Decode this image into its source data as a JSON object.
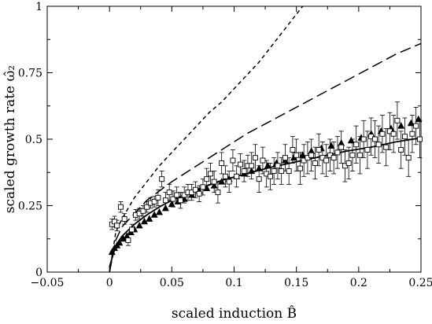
{
  "chart_data": {
    "type": "scatter",
    "title": "",
    "xlabel": "scaled induction B̂",
    "ylabel": "scaled growth rate ω̂₂",
    "xlim": [
      -0.05,
      0.25
    ],
    "ylim": [
      0,
      1
    ],
    "grid": false,
    "legend": "none",
    "x_ticks": [
      "−0.05",
      "0",
      "0.05",
      "0.1",
      "0.15",
      "0.2",
      "0.25"
    ],
    "y_ticks": [
      "0",
      "0.25",
      "0.5",
      "0.75",
      "1"
    ],
    "series": [
      {
        "style": "short-dash",
        "color": "#000000",
        "x": [
          0,
          0.005,
          0.01,
          0.02,
          0.03,
          0.04,
          0.05,
          0.06,
          0.07,
          0.08,
          0.09,
          0.1,
          0.11,
          0.12,
          0.13,
          0.14,
          0.15,
          0.155
        ],
        "y": [
          0,
          0.15,
          0.2,
          0.28,
          0.34,
          0.4,
          0.45,
          0.5,
          0.55,
          0.6,
          0.64,
          0.69,
          0.74,
          0.79,
          0.85,
          0.91,
          0.97,
          1.0
        ]
      },
      {
        "style": "long-dash",
        "color": "#000000",
        "x": [
          0,
          0.005,
          0.01,
          0.02,
          0.03,
          0.05,
          0.07,
          0.09,
          0.11,
          0.13,
          0.15,
          0.17,
          0.19,
          0.21,
          0.23,
          0.25
        ],
        "y": [
          0,
          0.12,
          0.17,
          0.22,
          0.27,
          0.34,
          0.4,
          0.46,
          0.52,
          0.57,
          0.62,
          0.67,
          0.72,
          0.77,
          0.82,
          0.86
        ]
      },
      {
        "style": "solid",
        "color": "#000000",
        "x": [
          0,
          0.005,
          0.01,
          0.02,
          0.03,
          0.04,
          0.05,
          0.07,
          0.09,
          0.11,
          0.13,
          0.15,
          0.17,
          0.19,
          0.21,
          0.23,
          0.25
        ],
        "y": [
          0.02,
          0.1,
          0.135,
          0.18,
          0.215,
          0.245,
          0.27,
          0.31,
          0.345,
          0.37,
          0.395,
          0.415,
          0.435,
          0.455,
          0.47,
          0.49,
          0.505
        ]
      },
      {
        "style": "filled-triangle",
        "color": "#000000",
        "x": [
          0.002,
          0.004,
          0.006,
          0.008,
          0.011,
          0.014,
          0.017,
          0.02,
          0.024,
          0.028,
          0.032,
          0.036,
          0.04,
          0.045,
          0.05,
          0.055,
          0.06,
          0.066,
          0.072,
          0.078,
          0.084,
          0.09,
          0.096,
          0.102,
          0.108,
          0.114,
          0.12,
          0.127,
          0.134,
          0.141,
          0.148,
          0.155,
          0.162,
          0.17,
          0.178,
          0.186,
          0.194,
          0.202,
          0.21,
          0.218,
          0.226,
          0.234,
          0.242,
          0.248
        ],
        "y": [
          0.075,
          0.09,
          0.1,
          0.11,
          0.125,
          0.135,
          0.15,
          0.16,
          0.175,
          0.19,
          0.2,
          0.215,
          0.225,
          0.24,
          0.255,
          0.265,
          0.275,
          0.29,
          0.305,
          0.315,
          0.325,
          0.34,
          0.35,
          0.36,
          0.37,
          0.38,
          0.39,
          0.4,
          0.41,
          0.42,
          0.43,
          0.44,
          0.455,
          0.465,
          0.475,
          0.485,
          0.495,
          0.505,
          0.52,
          0.53,
          0.54,
          0.55,
          0.56,
          0.575
        ]
      },
      {
        "style": "open-square-errorbar",
        "color": "#000000",
        "x": [
          0.002,
          0.004,
          0.006,
          0.009,
          0.012,
          0.015,
          0.018,
          0.021,
          0.024,
          0.027,
          0.03,
          0.033,
          0.036,
          0.039,
          0.042,
          0.045,
          0.048,
          0.051,
          0.054,
          0.057,
          0.06,
          0.063,
          0.066,
          0.069,
          0.072,
          0.075,
          0.078,
          0.081,
          0.084,
          0.087,
          0.09,
          0.093,
          0.096,
          0.099,
          0.102,
          0.105,
          0.108,
          0.111,
          0.114,
          0.117,
          0.12,
          0.123,
          0.126,
          0.129,
          0.132,
          0.135,
          0.138,
          0.141,
          0.144,
          0.147,
          0.15,
          0.153,
          0.156,
          0.159,
          0.162,
          0.165,
          0.168,
          0.171,
          0.174,
          0.177,
          0.18,
          0.183,
          0.186,
          0.189,
          0.192,
          0.195,
          0.198,
          0.201,
          0.204,
          0.207,
          0.21,
          0.213,
          0.216,
          0.219,
          0.222,
          0.225,
          0.228,
          0.231,
          0.234,
          0.237,
          0.24,
          0.243,
          0.246,
          0.249
        ],
        "y": [
          0.18,
          0.19,
          0.175,
          0.245,
          0.2,
          0.12,
          0.16,
          0.215,
          0.22,
          0.23,
          0.245,
          0.26,
          0.265,
          0.28,
          0.35,
          0.27,
          0.3,
          0.275,
          0.29,
          0.27,
          0.29,
          0.3,
          0.3,
          0.31,
          0.295,
          0.32,
          0.35,
          0.37,
          0.34,
          0.3,
          0.41,
          0.36,
          0.34,
          0.42,
          0.36,
          0.405,
          0.38,
          0.4,
          0.4,
          0.43,
          0.35,
          0.42,
          0.37,
          0.36,
          0.38,
          0.4,
          0.38,
          0.43,
          0.38,
          0.46,
          0.44,
          0.39,
          0.42,
          0.43,
          0.44,
          0.41,
          0.46,
          0.43,
          0.42,
          0.44,
          0.43,
          0.45,
          0.47,
          0.4,
          0.41,
          0.44,
          0.48,
          0.44,
          0.5,
          0.46,
          0.51,
          0.5,
          0.48,
          0.52,
          0.47,
          0.53,
          0.52,
          0.57,
          0.46,
          0.51,
          0.43,
          0.52,
          0.55,
          0.5
        ],
        "err": [
          0.02,
          0.02,
          0.02,
          0.02,
          0.02,
          0.02,
          0.02,
          0.02,
          0.02,
          0.02,
          0.02,
          0.02,
          0.02,
          0.03,
          0.03,
          0.03,
          0.03,
          0.03,
          0.03,
          0.03,
          0.03,
          0.03,
          0.03,
          0.03,
          0.03,
          0.03,
          0.04,
          0.04,
          0.04,
          0.04,
          0.04,
          0.04,
          0.04,
          0.04,
          0.04,
          0.04,
          0.04,
          0.04,
          0.05,
          0.05,
          0.05,
          0.05,
          0.05,
          0.05,
          0.05,
          0.05,
          0.05,
          0.05,
          0.05,
          0.05,
          0.06,
          0.06,
          0.06,
          0.06,
          0.06,
          0.06,
          0.06,
          0.06,
          0.06,
          0.06,
          0.06,
          0.06,
          0.06,
          0.06,
          0.06,
          0.06,
          0.07,
          0.07,
          0.07,
          0.07,
          0.07,
          0.07,
          0.07,
          0.07,
          0.07,
          0.07,
          0.07,
          0.07,
          0.07,
          0.07,
          0.07,
          0.07,
          0.07,
          0.07
        ]
      }
    ]
  }
}
